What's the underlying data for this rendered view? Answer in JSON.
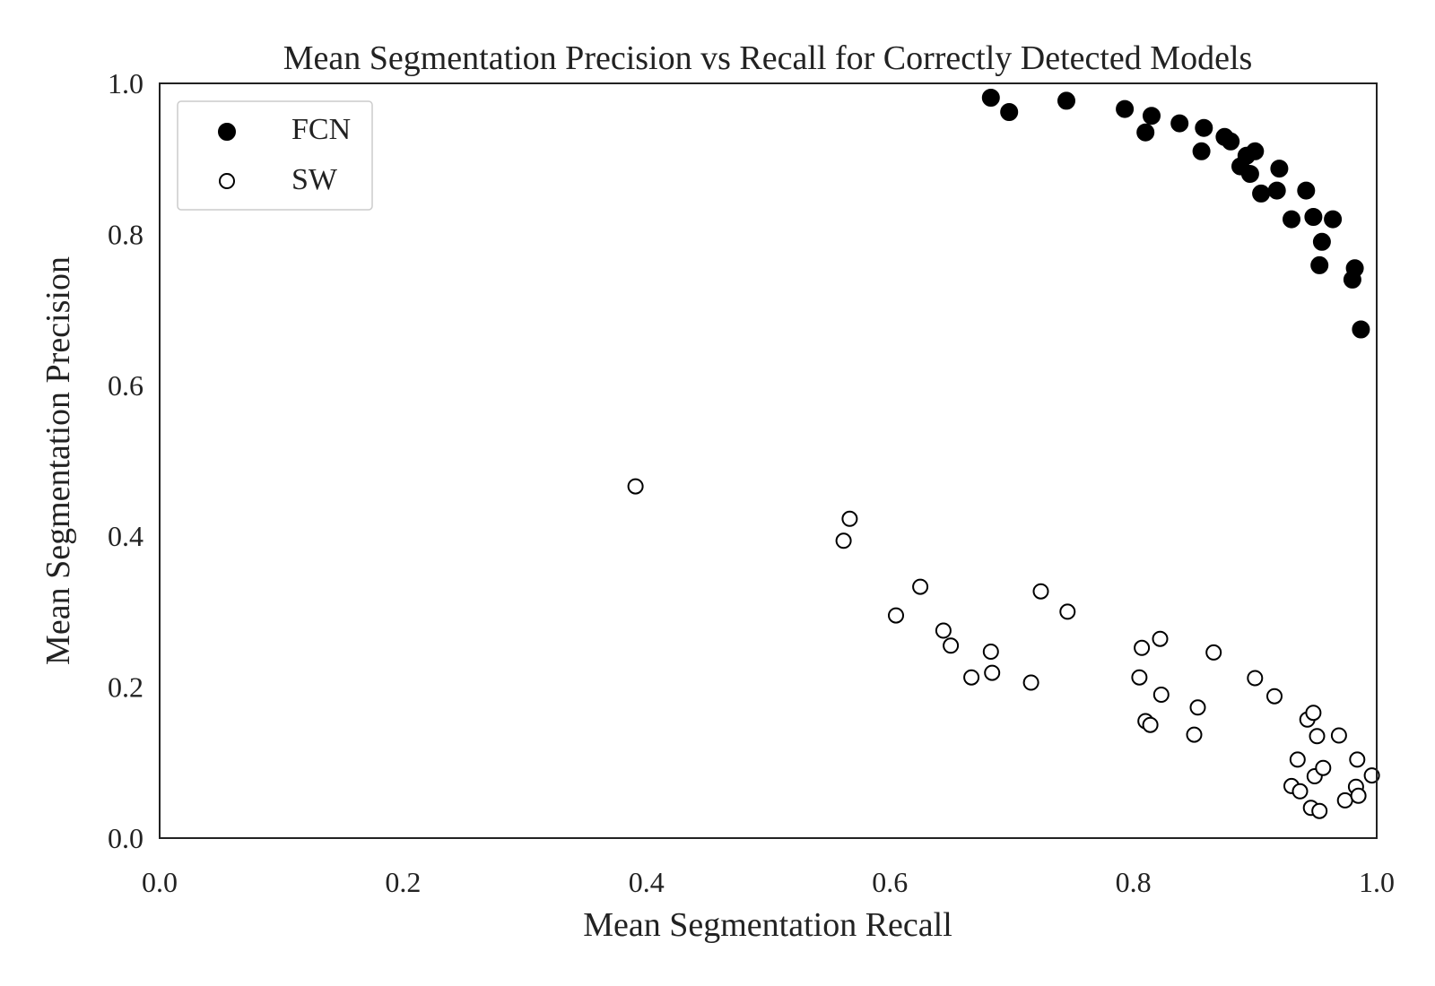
{
  "chart_data": {
    "type": "scatter",
    "title": "Mean Segmentation Precision vs Recall for Correctly Detected Models",
    "xlabel": "Mean Segmentation Recall",
    "ylabel": "Mean Segmentation Precision",
    "xlim": [
      0.0,
      1.0
    ],
    "ylim": [
      0.0,
      1.0
    ],
    "xticks": [
      "0.0",
      "0.2",
      "0.4",
      "0.6",
      "0.8",
      "1.0"
    ],
    "yticks": [
      "0.0",
      "0.2",
      "0.4",
      "0.6",
      "0.8",
      "1.0"
    ],
    "grid": false,
    "legend": "top-left",
    "series": [
      {
        "name": "FCN",
        "marker": "filled",
        "color": "#000000",
        "points": [
          [
            0.683,
            0.981
          ],
          [
            0.698,
            0.962
          ],
          [
            0.745,
            0.977
          ],
          [
            0.793,
            0.966
          ],
          [
            0.81,
            0.935
          ],
          [
            0.815,
            0.957
          ],
          [
            0.838,
            0.947
          ],
          [
            0.856,
            0.91
          ],
          [
            0.858,
            0.941
          ],
          [
            0.875,
            0.929
          ],
          [
            0.88,
            0.923
          ],
          [
            0.888,
            0.89
          ],
          [
            0.893,
            0.904
          ],
          [
            0.896,
            0.88
          ],
          [
            0.9,
            0.91
          ],
          [
            0.905,
            0.854
          ],
          [
            0.918,
            0.858
          ],
          [
            0.92,
            0.887
          ],
          [
            0.93,
            0.82
          ],
          [
            0.942,
            0.858
          ],
          [
            0.948,
            0.823
          ],
          [
            0.953,
            0.759
          ],
          [
            0.955,
            0.79
          ],
          [
            0.964,
            0.82
          ],
          [
            0.98,
            0.74
          ],
          [
            0.982,
            0.755
          ],
          [
            0.987,
            0.674
          ]
        ]
      },
      {
        "name": "SW",
        "marker": "hollow",
        "color": "#000000",
        "points": [
          [
            0.391,
            0.466
          ],
          [
            0.562,
            0.394
          ],
          [
            0.567,
            0.423
          ],
          [
            0.605,
            0.295
          ],
          [
            0.625,
            0.333
          ],
          [
            0.644,
            0.275
          ],
          [
            0.65,
            0.255
          ],
          [
            0.667,
            0.213
          ],
          [
            0.683,
            0.247
          ],
          [
            0.684,
            0.219
          ],
          [
            0.716,
            0.206
          ],
          [
            0.724,
            0.327
          ],
          [
            0.746,
            0.3
          ],
          [
            0.805,
            0.213
          ],
          [
            0.807,
            0.252
          ],
          [
            0.81,
            0.155
          ],
          [
            0.814,
            0.15
          ],
          [
            0.822,
            0.264
          ],
          [
            0.823,
            0.19
          ],
          [
            0.85,
            0.137
          ],
          [
            0.853,
            0.173
          ],
          [
            0.866,
            0.246
          ],
          [
            0.9,
            0.212
          ],
          [
            0.916,
            0.188
          ],
          [
            0.93,
            0.069
          ],
          [
            0.935,
            0.104
          ],
          [
            0.937,
            0.062
          ],
          [
            0.943,
            0.157
          ],
          [
            0.946,
            0.04
          ],
          [
            0.948,
            0.166
          ],
          [
            0.949,
            0.082
          ],
          [
            0.951,
            0.135
          ],
          [
            0.953,
            0.036
          ],
          [
            0.956,
            0.093
          ],
          [
            0.969,
            0.136
          ],
          [
            0.974,
            0.05
          ],
          [
            0.983,
            0.068
          ],
          [
            0.984,
            0.104
          ],
          [
            0.985,
            0.056
          ],
          [
            0.996,
            0.083
          ]
        ]
      }
    ]
  }
}
